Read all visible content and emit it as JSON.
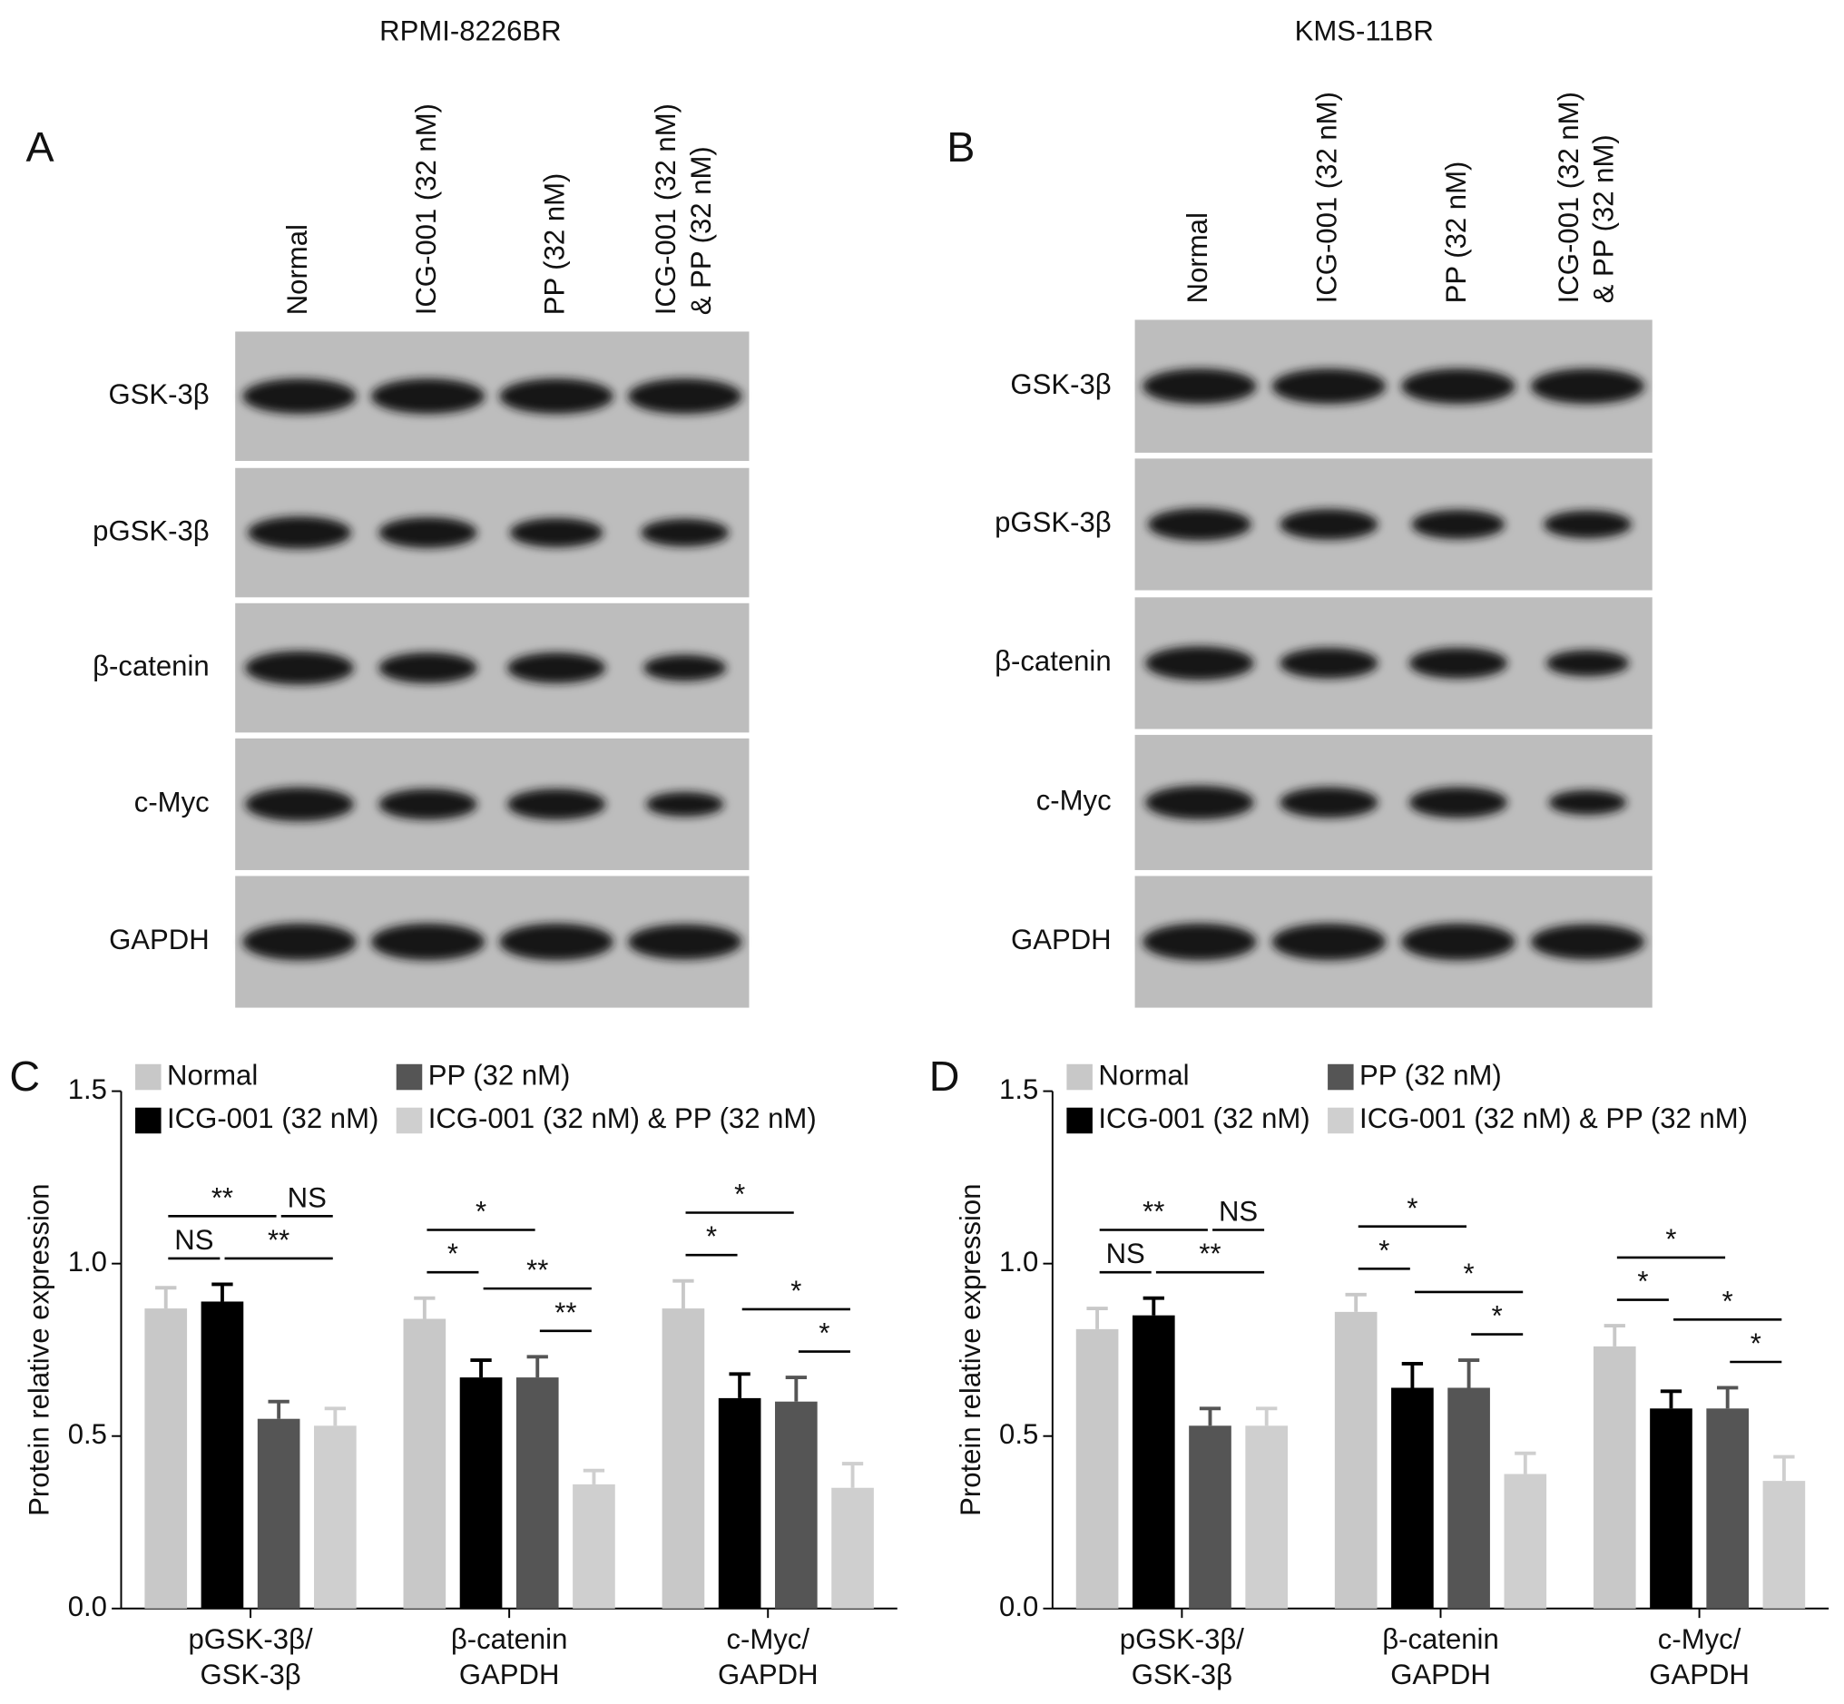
{
  "blots": [
    {
      "label": "A",
      "title": "RPMI-8226BR",
      "lanes": [
        "Normal",
        "ICG-001 (32 nM)",
        "PP (32 nM)",
        "ICG-001 (32 nM)\n& PP (32 nM)"
      ],
      "proteins": [
        "GSK-3β",
        "pGSK-3β",
        "β-catenin",
        "c-Myc",
        "GAPDH"
      ]
    },
    {
      "label": "B",
      "title": "KMS-11BR",
      "lanes": [
        "Normal",
        "ICG-001 (32 nM)",
        "PP (32 nM)",
        "ICG-001 (32 nM)\n& PP (32 nM)"
      ],
      "proteins": [
        "GSK-3β",
        "pGSK-3β",
        "β-catenin",
        "c-Myc",
        "GAPDH"
      ]
    }
  ],
  "chart_data": [
    {
      "type": "bar",
      "label": "C",
      "ylabel": "Protein relative expression",
      "categories": [
        "pGSK-3β/\nGSK-3β",
        "β-catenin\nGAPDH",
        "c-Myc/\nGAPDH"
      ],
      "series": [
        {
          "name": "Normal",
          "color": "#c8c8c8",
          "values": [
            0.87,
            0.84,
            0.87
          ],
          "errors": [
            0.06,
            0.06,
            0.08
          ]
        },
        {
          "name": "ICG-001 (32 nM)",
          "color": "#000000",
          "values": [
            0.89,
            0.67,
            0.61
          ],
          "errors": [
            0.05,
            0.05,
            0.07
          ]
        },
        {
          "name": "PP (32 nM)",
          "color": "#555555",
          "values": [
            0.55,
            0.67,
            0.6
          ],
          "errors": [
            0.05,
            0.06,
            0.07
          ]
        },
        {
          "name": "ICG-001 (32 nM) & PP (32 nM)",
          "color": "#cfcfcf",
          "values": [
            0.53,
            0.36,
            0.35
          ],
          "errors": [
            0.05,
            0.04,
            0.07
          ]
        }
      ],
      "ylim": [
        0,
        1.5
      ],
      "yticks": [
        {
          "value": 0,
          "label": "0.0"
        },
        {
          "value": 0.5,
          "label": "0.5"
        },
        {
          "value": 1,
          "label": "1.0"
        },
        {
          "value": 1.5,
          "label": "1.5"
        }
      ],
      "legend": "upper left",
      "annotations": [
        [
          {
            "label": "NS",
            "from": "Normal",
            "to": "ICG-001 (32 nM)"
          },
          {
            "label": "**",
            "from": "ICG-001 (32 nM)",
            "to": "ICG-001 (32 nM) & PP (32 nM)"
          },
          {
            "label": "**",
            "from": "Normal",
            "to": "PP (32 nM)"
          },
          {
            "label": "NS",
            "from": "PP (32 nM)",
            "to": "ICG-001 (32 nM) & PP (32 nM)"
          }
        ],
        [
          {
            "label": "**",
            "from": "PP (32 nM)",
            "to": "ICG-001 (32 nM) & PP (32 nM)"
          },
          {
            "label": "**",
            "from": "ICG-001 (32 nM)",
            "to": "ICG-001 (32 nM) & PP (32 nM)"
          },
          {
            "label": "*",
            "from": "Normal",
            "to": "ICG-001 (32 nM)"
          },
          {
            "label": "*",
            "from": "Normal",
            "to": "PP (32 nM)"
          }
        ],
        [
          {
            "label": "*",
            "from": "PP (32 nM)",
            "to": "ICG-001 (32 nM) & PP (32 nM)"
          },
          {
            "label": "*",
            "from": "ICG-001 (32 nM)",
            "to": "ICG-001 (32 nM) & PP (32 nM)"
          },
          {
            "label": "*",
            "from": "Normal",
            "to": "ICG-001 (32 nM)"
          },
          {
            "label": "*",
            "from": "Normal",
            "to": "PP (32 nM)"
          }
        ]
      ]
    },
    {
      "type": "bar",
      "label": "D",
      "ylabel": "Protein relative expression",
      "categories": [
        "pGSK-3β/\nGSK-3β",
        "β-catenin\nGAPDH",
        "c-Myc/\nGAPDH"
      ],
      "series": [
        {
          "name": "Normal",
          "color": "#c8c8c8",
          "values": [
            0.81,
            0.86,
            0.76
          ],
          "errors": [
            0.06,
            0.05,
            0.06
          ]
        },
        {
          "name": "ICG-001 (32 nM)",
          "color": "#000000",
          "values": [
            0.85,
            0.64,
            0.58
          ],
          "errors": [
            0.05,
            0.07,
            0.05
          ]
        },
        {
          "name": "PP (32 nM)",
          "color": "#555555",
          "values": [
            0.53,
            0.64,
            0.58
          ],
          "errors": [
            0.05,
            0.08,
            0.06
          ]
        },
        {
          "name": "ICG-001 (32 nM) & PP (32 nM)",
          "color": "#cfcfcf",
          "values": [
            0.53,
            0.39,
            0.37
          ],
          "errors": [
            0.05,
            0.06,
            0.07
          ]
        }
      ],
      "ylim": [
        0,
        1.5
      ],
      "yticks": [
        {
          "value": 0,
          "label": "0.0"
        },
        {
          "value": 0.5,
          "label": "0.5"
        },
        {
          "value": 1,
          "label": "1.0"
        },
        {
          "value": 1.5,
          "label": "1.5"
        }
      ],
      "legend": "upper left",
      "annotations": [
        [
          {
            "label": "NS",
            "from": "Normal",
            "to": "ICG-001 (32 nM)"
          },
          {
            "label": "**",
            "from": "ICG-001 (32 nM)",
            "to": "ICG-001 (32 nM) & PP (32 nM)"
          },
          {
            "label": "**",
            "from": "Normal",
            "to": "PP (32 nM)"
          },
          {
            "label": "NS",
            "from": "PP (32 nM)",
            "to": "ICG-001 (32 nM) & PP (32 nM)"
          }
        ],
        [
          {
            "label": "*",
            "from": "PP (32 nM)",
            "to": "ICG-001 (32 nM) & PP (32 nM)"
          },
          {
            "label": "*",
            "from": "ICG-001 (32 nM)",
            "to": "ICG-001 (32 nM) & PP (32 nM)"
          },
          {
            "label": "*",
            "from": "Normal",
            "to": "ICG-001 (32 nM)"
          },
          {
            "label": "*",
            "from": "Normal",
            "to": "PP (32 nM)"
          }
        ],
        [
          {
            "label": "*",
            "from": "PP (32 nM)",
            "to": "ICG-001 (32 nM) & PP (32 nM)"
          },
          {
            "label": "*",
            "from": "ICG-001 (32 nM)",
            "to": "ICG-001 (32 nM) & PP (32 nM)"
          },
          {
            "label": "*",
            "from": "Normal",
            "to": "ICG-001 (32 nM)"
          },
          {
            "label": "*",
            "from": "Normal",
            "to": "PP (32 nM)"
          }
        ]
      ]
    }
  ]
}
